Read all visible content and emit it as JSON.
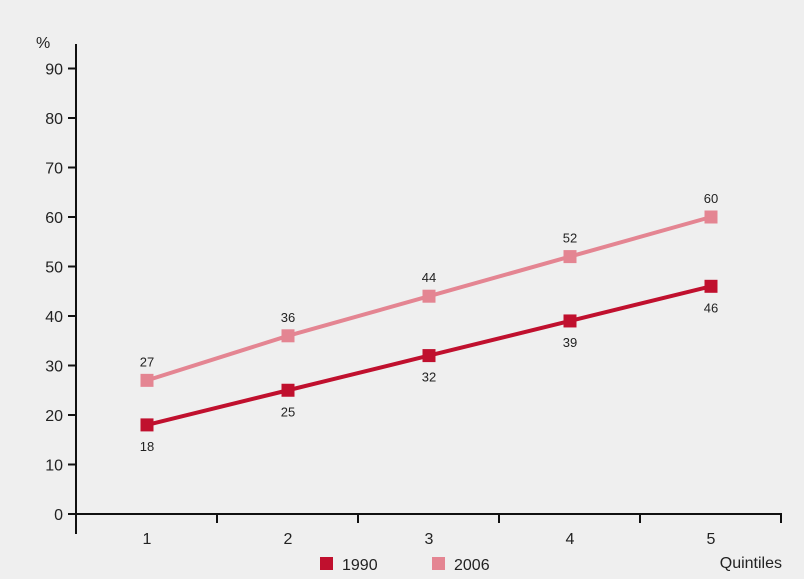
{
  "chart_data": {
    "type": "line",
    "x": [
      1,
      2,
      3,
      4,
      5
    ],
    "x_tick_labels": [
      "1",
      "2",
      "3",
      "4",
      "5"
    ],
    "y_ticks": [
      0,
      10,
      20,
      30,
      40,
      50,
      60,
      70,
      80,
      90
    ],
    "ylim": [
      0,
      95
    ],
    "ylabel": "%",
    "xlabel": "Quintiles",
    "grid": false,
    "legend_position": "bottom",
    "series": [
      {
        "name": "1990",
        "values": [
          18,
          25,
          32,
          39,
          46
        ],
        "color": "#c0102e",
        "label_position": "below"
      },
      {
        "name": "2006",
        "values": [
          27,
          36,
          44,
          52,
          60
        ],
        "color": "#e48592",
        "label_position": "above"
      }
    ]
  }
}
